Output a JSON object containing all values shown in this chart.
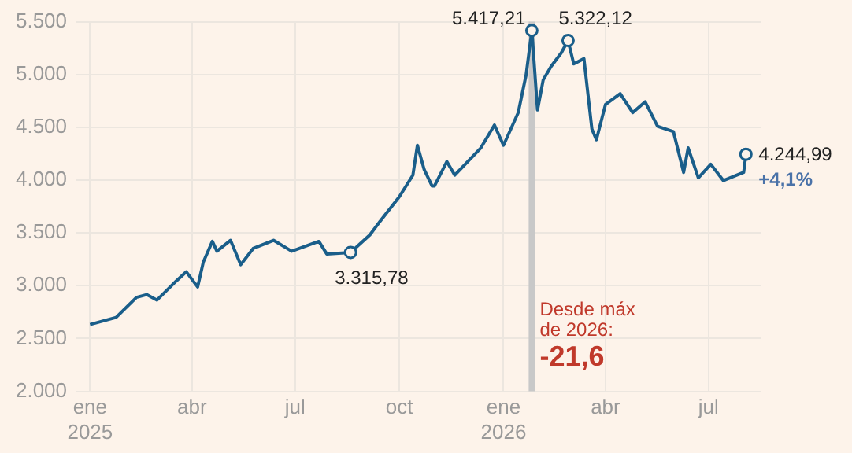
{
  "chart_data": {
    "type": "line",
    "x": [
      "2025-01-01",
      "2025-01-24",
      "2025-02-11",
      "2025-02-20",
      "2025-03-01",
      "2025-03-18",
      "2025-03-27",
      "2025-04-06",
      "2025-04-11",
      "2025-04-19",
      "2025-04-23",
      "2025-05-05",
      "2025-05-14",
      "2025-05-25",
      "2025-06-12",
      "2025-06-28",
      "2025-07-22",
      "2025-07-29",
      "2025-08-19",
      "2025-09-05",
      "2025-09-14",
      "2025-10-01",
      "2025-10-13",
      "2025-10-17",
      "2025-10-23",
      "2025-10-30",
      "2025-11-01",
      "2025-11-12",
      "2025-11-19",
      "2025-12-12",
      "2025-12-24",
      "2026-01-01",
      "2026-01-14",
      "2026-01-21",
      "2026-01-26",
      "2026-01-31",
      "2026-02-05",
      "2026-02-12",
      "2026-02-21",
      "2026-02-27",
      "2026-03-04",
      "2026-03-13",
      "2026-03-20",
      "2026-03-24",
      "2026-04-01",
      "2026-04-14",
      "2026-04-25",
      "2026-05-06",
      "2026-05-17",
      "2026-05-31",
      "2026-06-09",
      "2026-06-13",
      "2026-06-22",
      "2026-07-03",
      "2026-07-14",
      "2026-08-01",
      "2026-08-03"
    ],
    "series": [
      {
        "color": "#1a5e8a",
        "values": [
          2633,
          2700,
          2890,
          2916,
          2864,
          3044,
          3132,
          2988,
          3224,
          3420,
          3327,
          3430,
          3199,
          3353,
          3430,
          3327,
          3420,
          3301,
          3315.78,
          3481,
          3610,
          3842,
          4047,
          4330,
          4099,
          3944,
          3944,
          4176,
          4047,
          4305,
          4521,
          4330,
          4639,
          5000,
          5417.21,
          4664,
          4947,
          5076,
          5205,
          5322.12,
          5100,
          5150,
          4485,
          4382,
          4716,
          4819,
          4639,
          4742,
          4510,
          4459,
          4073,
          4305,
          4022,
          4150,
          3996,
          4073,
          4244.99
        ]
      }
    ],
    "xlim": [
      "2024-12-20",
      "2026-08-16"
    ],
    "xticks": [
      {
        "value": "2025-01-01",
        "label": "ene\n2025"
      },
      {
        "value": "2025-04-01",
        "label": "abr"
      },
      {
        "value": "2025-07-01",
        "label": "jul"
      },
      {
        "value": "2025-10-01",
        "label": "oct"
      },
      {
        "value": "2026-01-01",
        "label": "ene\n2026"
      },
      {
        "value": "2026-04-01",
        "label": "abr"
      },
      {
        "value": "2026-07-01",
        "label": "jul"
      }
    ],
    "ylim": [
      2000,
      5500
    ],
    "yticks": [
      {
        "value": 2000,
        "label": "2.000"
      },
      {
        "value": 2500,
        "label": "2.500"
      },
      {
        "value": 3000,
        "label": "3.000"
      },
      {
        "value": 3500,
        "label": "3.500"
      },
      {
        "value": 4000,
        "label": "4.000"
      },
      {
        "value": 4500,
        "label": "4.500"
      },
      {
        "value": 5000,
        "label": "5.000"
      },
      {
        "value": 5500,
        "label": "5.500"
      }
    ],
    "grid": true,
    "legend": false,
    "marker": "none",
    "line_style": "solid",
    "ref_lines": [
      {
        "axis": "x",
        "value": "2026-01-26",
        "label": "Desde máx\nde 2026:",
        "color": "#c8c8c8"
      }
    ],
    "annotations": [
      {
        "text": "5.417,21",
        "x": "2026-01-26",
        "y": 5417.21
      },
      {
        "text": "5.322,12",
        "x": "2026-02-27",
        "y": 5322.12
      },
      {
        "text": "3.315,78",
        "x": "2025-08-19",
        "y": 3315.78
      },
      {
        "text": "4.244,99",
        "x": "2026-08-03",
        "y": 4244.99
      },
      {
        "text": "+4,1%",
        "x": "2026-08-03",
        "y": 4244.99
      },
      {
        "text": "-21,6",
        "x": "2026-01-26",
        "y": 2240
      }
    ]
  }
}
